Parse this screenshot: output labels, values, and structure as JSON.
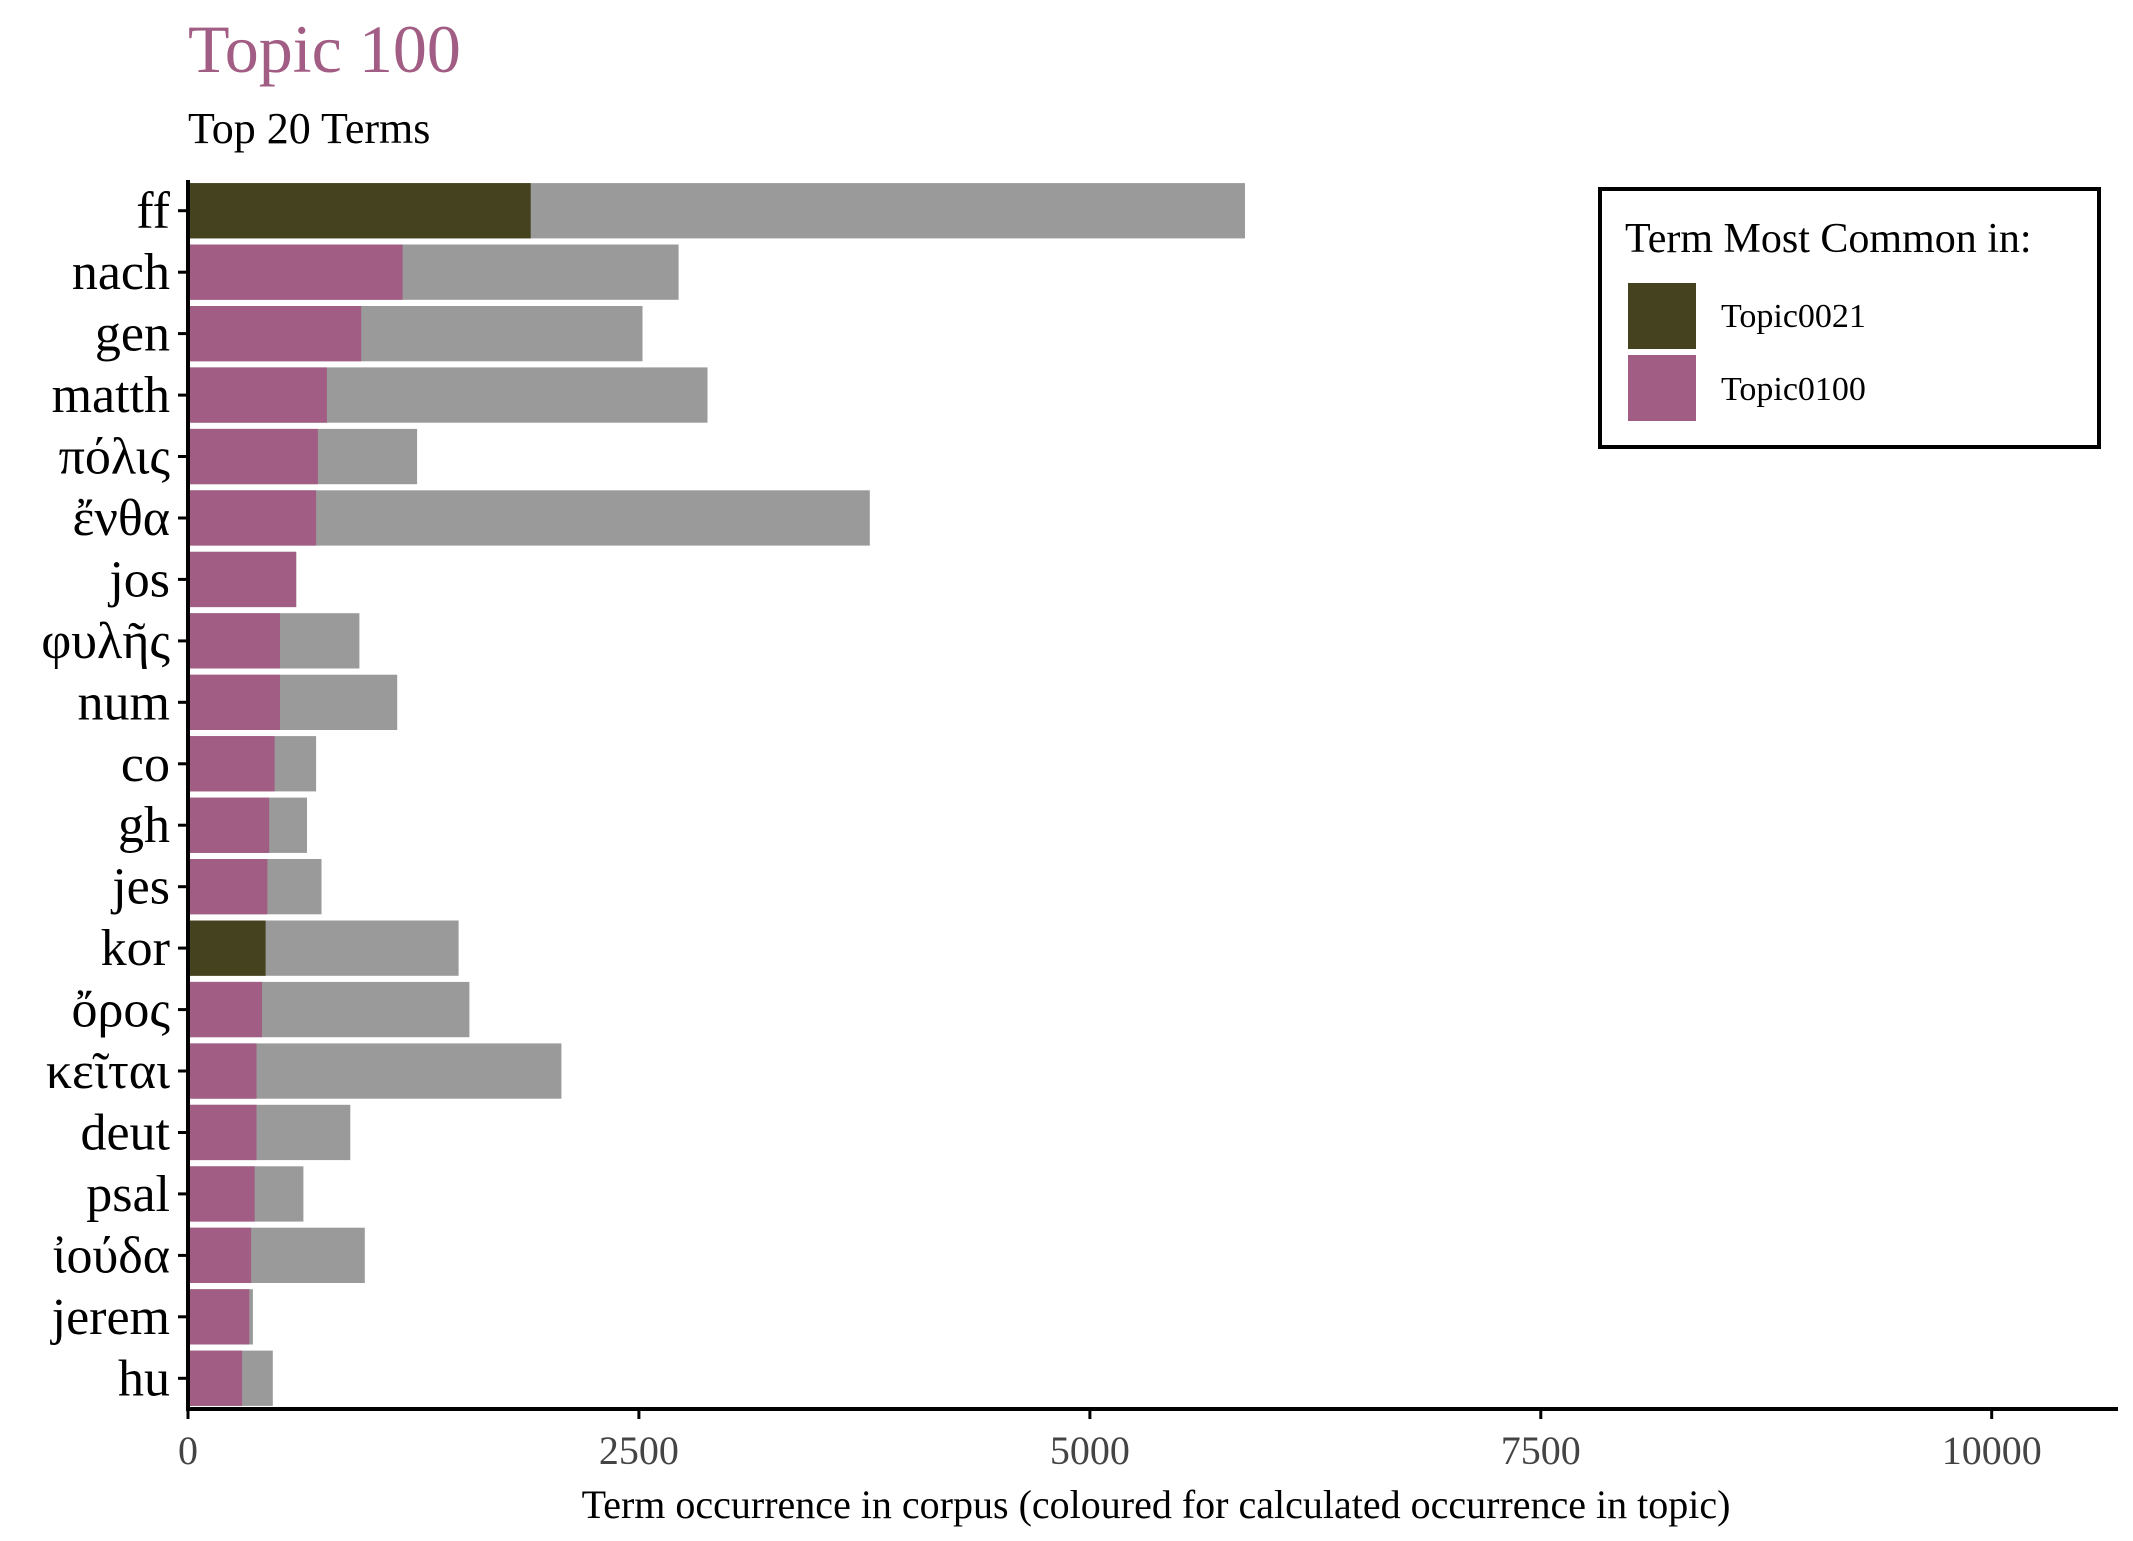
{
  "chart_data": {
    "type": "bar",
    "orientation": "horizontal",
    "title": "Topic 100",
    "subtitle": "Top 20 Terms",
    "xlabel": "Term occurrence in corpus (coloured for calculated occurrence in topic)",
    "ylabel": "",
    "xlim": [
      0,
      10700
    ],
    "xticks": [
      0,
      2500,
      5000,
      7500,
      10000
    ],
    "xtick_labels": [
      "0",
      "2500",
      "5000",
      "7500",
      "10000"
    ],
    "grid": false,
    "legend": {
      "title": "Term Most Common in:",
      "placement": "top-right",
      "entries": [
        {
          "label": "Topic0021",
          "color": "#45431f"
        },
        {
          "label": "Topic0100",
          "color": "#a25d84"
        }
      ]
    },
    "colors": {
      "title": "#a25d84",
      "corpus_bar": "#9a9a9a",
      "Topic0021": "#45431f",
      "Topic0100": "#a25d84"
    },
    "categories": [
      "ff",
      "nach",
      "gen",
      "matth",
      "πόλις",
      "ἔνθα",
      "jos",
      "φυλῆς",
      "num",
      "co",
      "gh",
      "jes",
      "kor",
      "ὄρος",
      "κεῖται",
      "deut",
      "psal",
      "ἰούδα",
      "jerem",
      "hu"
    ],
    "series": [
      {
        "name": "Term occurrence in corpus",
        "values": [
          5860,
          2720,
          2520,
          2880,
          1270,
          3780,
          600,
          950,
          1160,
          710,
          660,
          740,
          1500,
          1560,
          2070,
          900,
          640,
          980,
          360,
          470
        ]
      },
      {
        "name": "Calculated occurrence in topic",
        "values": [
          1900,
          1190,
          960,
          770,
          720,
          710,
          600,
          510,
          510,
          480,
          450,
          440,
          430,
          410,
          380,
          380,
          370,
          350,
          340,
          300
        ],
        "most_common_in": [
          "Topic0021",
          "Topic0100",
          "Topic0100",
          "Topic0100",
          "Topic0100",
          "Topic0100",
          "Topic0100",
          "Topic0100",
          "Topic0100",
          "Topic0100",
          "Topic0100",
          "Topic0100",
          "Topic0021",
          "Topic0100",
          "Topic0100",
          "Topic0100",
          "Topic0100",
          "Topic0100",
          "Topic0100",
          "Topic0100"
        ]
      }
    ]
  }
}
